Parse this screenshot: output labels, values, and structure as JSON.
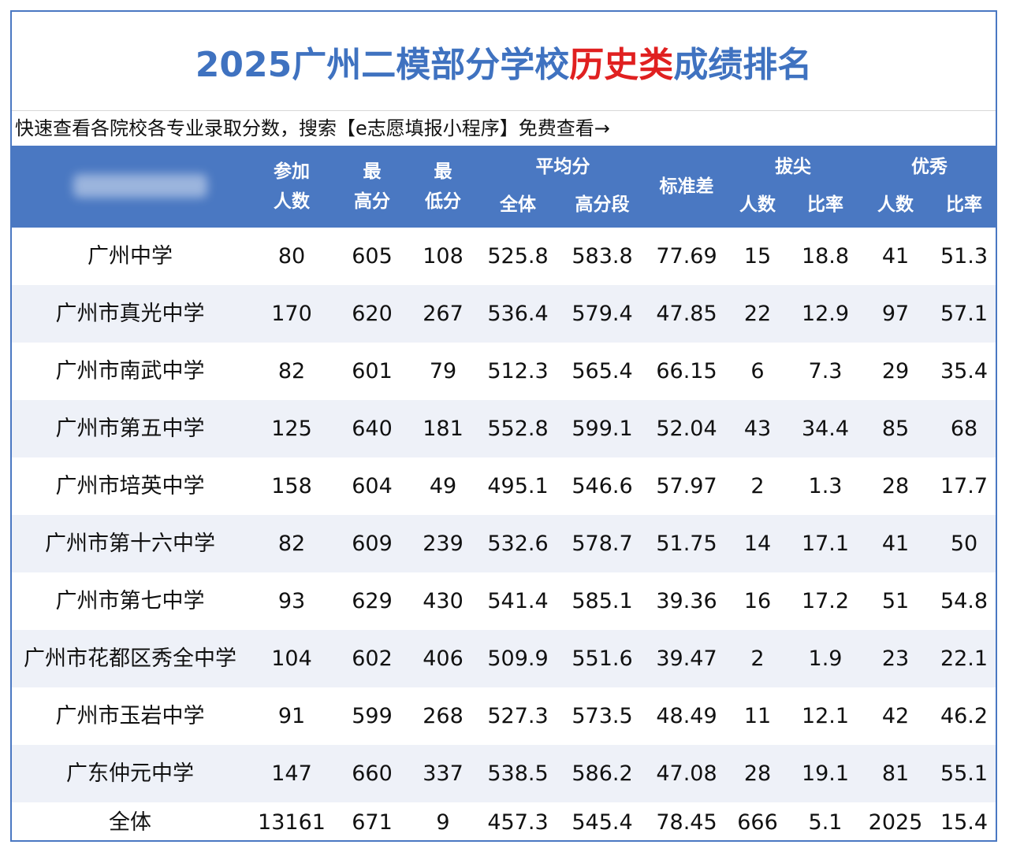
{
  "title": {
    "part1": "2025广州二模部分学校",
    "highlight": "历史类",
    "part2": "成绩排名"
  },
  "notice": "快速查看各院校各专业录取分数，搜索【e志愿填报小程序】免费查看→",
  "header": {
    "participants": [
      "参加",
      "人数"
    ],
    "max": [
      "最",
      "高分"
    ],
    "min": [
      "最",
      "低分"
    ],
    "avg_group": "平均分",
    "avg_all": "全体",
    "avg_high": "高分段",
    "std": "标准差",
    "top_group": "拔尖",
    "top_count": "人数",
    "top_rate": "比率",
    "exc_group": "优秀",
    "exc_count": "人数",
    "exc_rate": "比率"
  },
  "colors": {
    "accent": "#4a78c2",
    "highlight": "#e02020",
    "stripe": "#eef1f8"
  },
  "rows": [
    [
      "广州中学",
      "80",
      "605",
      "108",
      "525.8",
      "583.8",
      "77.69",
      "15",
      "18.8",
      "41",
      "51.3"
    ],
    [
      "广州市真光中学",
      "170",
      "620",
      "267",
      "536.4",
      "579.4",
      "47.85",
      "22",
      "12.9",
      "97",
      "57.1"
    ],
    [
      "广州市南武中学",
      "82",
      "601",
      "79",
      "512.3",
      "565.4",
      "66.15",
      "6",
      "7.3",
      "29",
      "35.4"
    ],
    [
      "广州市第五中学",
      "125",
      "640",
      "181",
      "552.8",
      "599.1",
      "52.04",
      "43",
      "34.4",
      "85",
      "68"
    ],
    [
      "广州市培英中学",
      "158",
      "604",
      "49",
      "495.1",
      "546.6",
      "57.97",
      "2",
      "1.3",
      "28",
      "17.7"
    ],
    [
      "广州市第十六中学",
      "82",
      "609",
      "239",
      "532.6",
      "578.7",
      "51.75",
      "14",
      "17.1",
      "41",
      "50"
    ],
    [
      "广州市第七中学",
      "93",
      "629",
      "430",
      "541.4",
      "585.1",
      "39.36",
      "16",
      "17.2",
      "51",
      "54.8"
    ],
    [
      "广州市花都区秀全中学",
      "104",
      "602",
      "406",
      "509.9",
      "551.6",
      "39.47",
      "2",
      "1.9",
      "23",
      "22.1"
    ],
    [
      "广州市玉岩中学",
      "91",
      "599",
      "268",
      "527.3",
      "573.5",
      "48.49",
      "11",
      "12.1",
      "42",
      "46.2"
    ],
    [
      "广东仲元中学",
      "147",
      "660",
      "337",
      "538.5",
      "586.2",
      "47.08",
      "28",
      "19.1",
      "81",
      "55.1"
    ]
  ],
  "total": [
    "全体",
    "13161",
    "671",
    "9",
    "457.3",
    "545.4",
    "78.45",
    "666",
    "5.1",
    "2025",
    "15.4"
  ]
}
